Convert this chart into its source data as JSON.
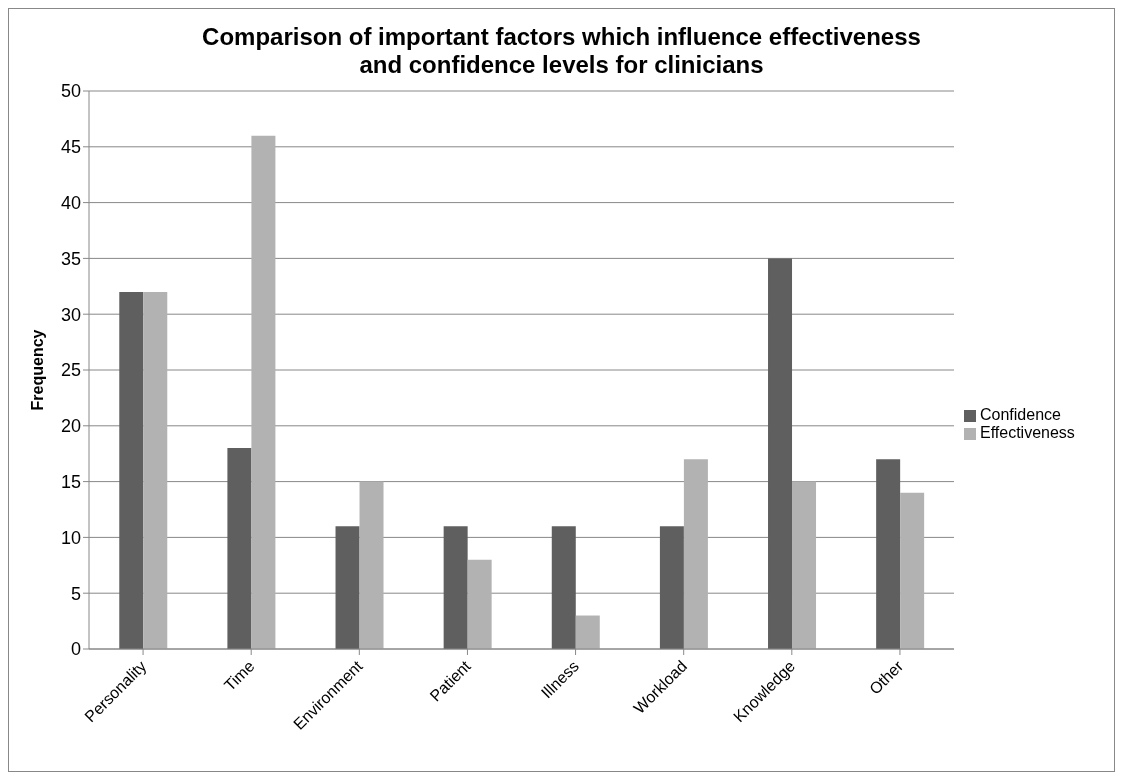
{
  "chart_data": {
    "type": "bar",
    "title": "Comparison of important factors which influence effectiveness and confidence levels for clinicians",
    "ylabel": "Frequency",
    "categories": [
      "Personality",
      "Time",
      "Environment",
      "Patient",
      "Illness",
      "Workload",
      "Knowledge",
      "Other"
    ],
    "series": [
      {
        "name": "Confidence",
        "color": "#5f5f5f",
        "values": [
          32,
          18,
          11,
          11,
          11,
          11,
          35,
          17
        ]
      },
      {
        "name": "Effectiveness",
        "color": "#b2b2b2",
        "values": [
          32,
          46,
          15,
          8,
          3,
          17,
          15,
          14
        ]
      }
    ],
    "ylim": [
      0,
      50
    ],
    "yticks": [
      0,
      5,
      10,
      15,
      20,
      25,
      30,
      35,
      40,
      45,
      50
    ],
    "grid": "y",
    "legend": "right"
  }
}
